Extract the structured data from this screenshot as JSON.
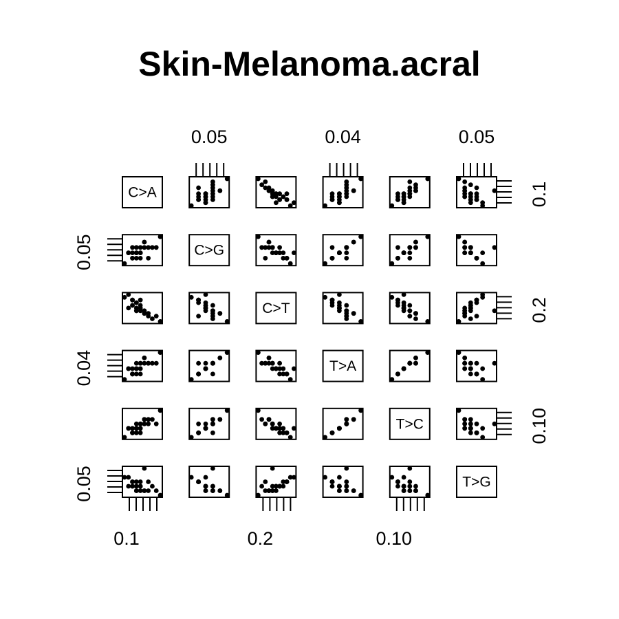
{
  "chart_data": {
    "type": "scatter",
    "title": "Skin-Melanoma.acral",
    "variables": [
      "C>A",
      "C>G",
      "C>T",
      "T>A",
      "T>C",
      "T>G"
    ],
    "axis_tick_labels": {
      "top": [
        {
          "column": 1,
          "label": "0.05"
        },
        {
          "column": 3,
          "label": "0.04"
        },
        {
          "column": 5,
          "label": "0.05"
        }
      ],
      "bottom": [
        {
          "column": 0,
          "label": "0.1"
        },
        {
          "column": 2,
          "label": "0.2"
        },
        {
          "column": 4,
          "label": "0.10"
        }
      ],
      "left": [
        {
          "row": 1,
          "label": "0.05"
        },
        {
          "row": 3,
          "label": "0.04"
        },
        {
          "row": 5,
          "label": "0.05"
        }
      ],
      "right": [
        {
          "row": 0,
          "label": "0.1"
        },
        {
          "row": 2,
          "label": "0.2"
        },
        {
          "row": 4,
          "label": "0.10"
        }
      ]
    },
    "observations": {
      "C>A": [
        0.08,
        0.09,
        0.1,
        0.07,
        0.11,
        0.09,
        0.12,
        0.08,
        0.1,
        0.06,
        0.13,
        0.09,
        0.1,
        0.11,
        0.08,
        0.09,
        0.15,
        0.14,
        0.09,
        0.1,
        0.07,
        0.12,
        0.1,
        0.08,
        0.11
      ],
      "C>G": [
        0.05,
        0.06,
        0.04,
        0.05,
        0.07,
        0.05,
        0.04,
        0.06,
        0.05,
        0.03,
        0.06,
        0.05,
        0.05,
        0.07,
        0.04,
        0.05,
        0.08,
        0.06,
        0.04,
        0.06,
        0.05,
        0.06,
        0.05,
        0.04,
        0.06
      ],
      "C>T": [
        0.2,
        0.18,
        0.22,
        0.19,
        0.17,
        0.21,
        0.16,
        0.2,
        0.19,
        0.23,
        0.15,
        0.18,
        0.2,
        0.17,
        0.22,
        0.19,
        0.14,
        0.16,
        0.21,
        0.18,
        0.24,
        0.17,
        0.19,
        0.22,
        0.18
      ],
      "T>A": [
        0.04,
        0.05,
        0.03,
        0.04,
        0.06,
        0.04,
        0.05,
        0.03,
        0.04,
        0.02,
        0.05,
        0.04,
        0.05,
        0.06,
        0.03,
        0.04,
        0.07,
        0.05,
        0.03,
        0.05,
        0.04,
        0.05,
        0.04,
        0.03,
        0.05
      ],
      "T>C": [
        0.1,
        0.11,
        0.09,
        0.1,
        0.12,
        0.1,
        0.11,
        0.09,
        0.1,
        0.08,
        0.12,
        0.1,
        0.11,
        0.12,
        0.09,
        0.1,
        0.14,
        0.11,
        0.09,
        0.11,
        0.1,
        0.12,
        0.1,
        0.09,
        0.11
      ],
      "T>G": [
        0.04,
        0.03,
        0.05,
        0.04,
        0.03,
        0.04,
        0.05,
        0.04,
        0.03,
        0.06,
        0.04,
        0.03,
        0.04,
        0.03,
        0.05,
        0.04,
        0.02,
        0.03,
        0.05,
        0.04,
        0.06,
        0.03,
        0.04,
        0.05,
        0.08
      ]
    }
  }
}
